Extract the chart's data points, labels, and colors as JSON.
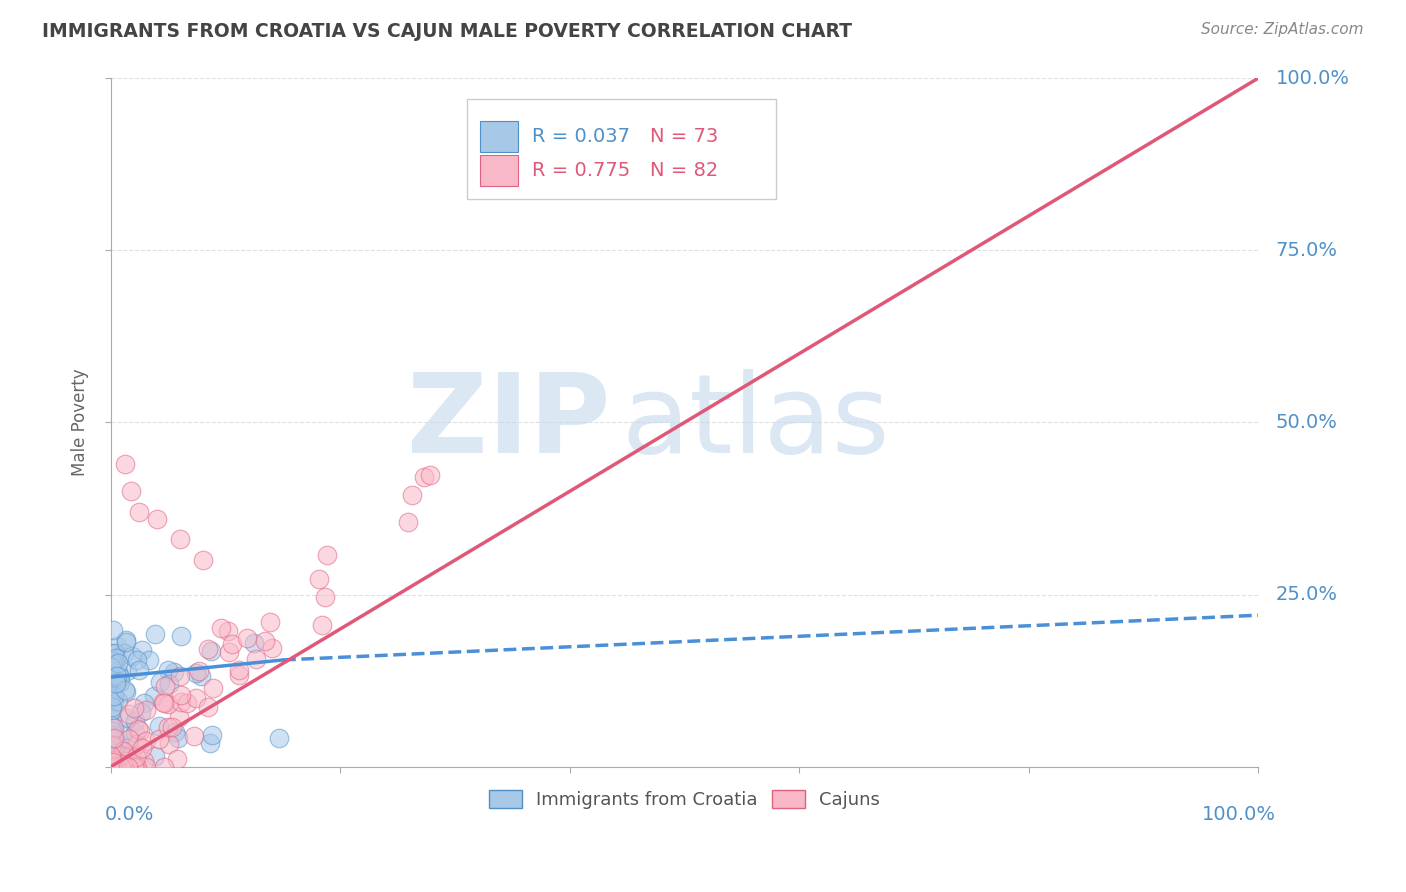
{
  "title": "IMMIGRANTS FROM CROATIA VS CAJUN MALE POVERTY CORRELATION CHART",
  "source": "Source: ZipAtlas.com",
  "ylabel": "Male Poverty",
  "croatia_R": 0.037,
  "croatia_N": 73,
  "cajun_R": 0.775,
  "cajun_N": 82,
  "watermark_zip": "ZIP",
  "watermark_atlas": "atlas",
  "blue_color": "#a8c8e8",
  "blue_edge_color": "#5090c8",
  "blue_line_color": "#4a90d9",
  "pink_color": "#f8b8c8",
  "pink_edge_color": "#e06080",
  "pink_line_color": "#e05878",
  "background_color": "#ffffff",
  "grid_color": "#cccccc",
  "title_color": "#444444",
  "axis_label_color": "#5090c8",
  "legend_R_color": "#5090c8",
  "legend_N_color": "#e05878",
  "source_color": "#888888"
}
